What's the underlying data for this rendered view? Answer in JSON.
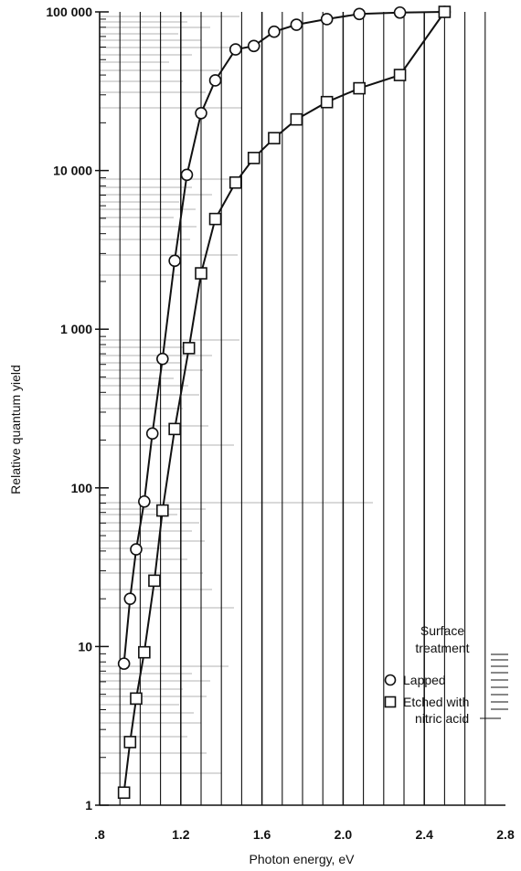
{
  "chart_data": {
    "type": "line",
    "xlabel": "Photon energy, eV",
    "ylabel": "Relative quantum yield",
    "xlim": [
      0.8,
      2.8
    ],
    "ylim": [
      1,
      100000
    ],
    "yscale": "log",
    "x_ticks": [
      0.8,
      1.2,
      1.6,
      2.0,
      2.4,
      2.8
    ],
    "x_tick_labels": [
      ".8",
      "1.2",
      "1.6",
      "2.0",
      "2.4",
      "2.8"
    ],
    "y_ticks": [
      1,
      10,
      100,
      1000,
      10000,
      100000
    ],
    "y_tick_labels": [
      "1",
      "10",
      "100",
      "1 000",
      "10 000",
      "100 000"
    ],
    "grid": "vertical",
    "legend": {
      "title_lines": [
        "Surface",
        "treatment"
      ],
      "placement": "lower-right"
    },
    "series": [
      {
        "name": "Lapped",
        "marker": "circle",
        "x": [
          0.92,
          0.95,
          0.98,
          1.02,
          1.06,
          1.11,
          1.17,
          1.23,
          1.3,
          1.37,
          1.47,
          1.56,
          1.66,
          1.77,
          1.92,
          2.08,
          2.28,
          2.5
        ],
        "y": [
          7.8,
          20,
          41,
          82,
          220,
          650,
          2700,
          9400,
          23000,
          37000,
          58000,
          61000,
          75000,
          83000,
          90000,
          97000,
          99000,
          100000
        ]
      },
      {
        "name": "Etched with nitric acid",
        "marker": "square",
        "x": [
          0.92,
          0.95,
          0.98,
          1.02,
          1.07,
          1.11,
          1.17,
          1.24,
          1.3,
          1.37,
          1.47,
          1.56,
          1.66,
          1.77,
          1.92,
          2.08,
          2.28,
          2.5
        ],
        "y": [
          1.2,
          2.5,
          4.7,
          9.2,
          26,
          72,
          235,
          760,
          2250,
          4950,
          8400,
          12000,
          16000,
          21000,
          27000,
          33000,
          40000,
          100000
        ]
      }
    ]
  }
}
